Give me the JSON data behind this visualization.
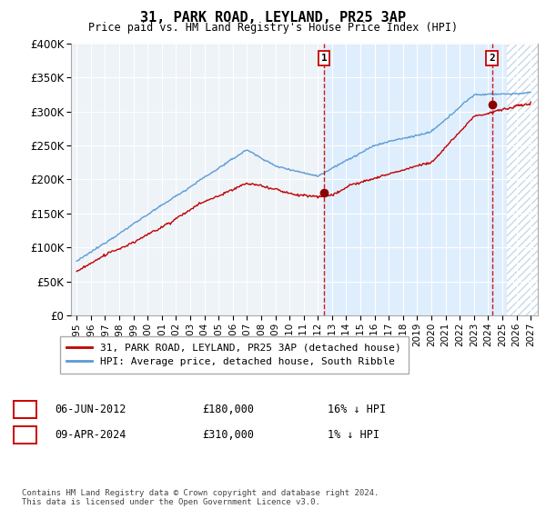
{
  "title": "31, PARK ROAD, LEYLAND, PR25 3AP",
  "subtitle": "Price paid vs. HM Land Registry's House Price Index (HPI)",
  "ylim": [
    0,
    400000
  ],
  "yticks": [
    0,
    50000,
    100000,
    150000,
    200000,
    250000,
    300000,
    350000,
    400000
  ],
  "ytick_labels": [
    "£0",
    "£50K",
    "£100K",
    "£150K",
    "£200K",
    "£250K",
    "£300K",
    "£350K",
    "£400K"
  ],
  "xlim_start": 1994.6,
  "xlim_end": 2027.5,
  "xticks": [
    1995,
    1996,
    1997,
    1998,
    1999,
    2000,
    2001,
    2002,
    2003,
    2004,
    2005,
    2006,
    2007,
    2008,
    2009,
    2010,
    2011,
    2012,
    2013,
    2014,
    2015,
    2016,
    2017,
    2018,
    2019,
    2020,
    2021,
    2022,
    2023,
    2024,
    2025,
    2026,
    2027
  ],
  "legend_entry1": "31, PARK ROAD, LEYLAND, PR25 3AP (detached house)",
  "legend_entry2": "HPI: Average price, detached house, South Ribble",
  "transaction1_date": 2012.44,
  "transaction1_label": "1",
  "transaction1_price": 180000,
  "transaction1_pct": "16% ↓ HPI",
  "transaction1_display": "06-JUN-2012",
  "transaction2_date": 2024.27,
  "transaction2_label": "2",
  "transaction2_price": 310000,
  "transaction2_pct": "1% ↓ HPI",
  "transaction2_display": "09-APR-2024",
  "footer": "Contains HM Land Registry data © Crown copyright and database right 2024.\nThis data is licensed under the Open Government Licence v3.0.",
  "hpi_color": "#5b9bd5",
  "price_color": "#c00000",
  "marker_color": "#8b0000",
  "vline_color": "#cc0000",
  "shade_color": "#ddeeff",
  "hatch_color": "#c8d8e8",
  "bg_color": "#eef3f8",
  "grid_color": "#ffffff"
}
